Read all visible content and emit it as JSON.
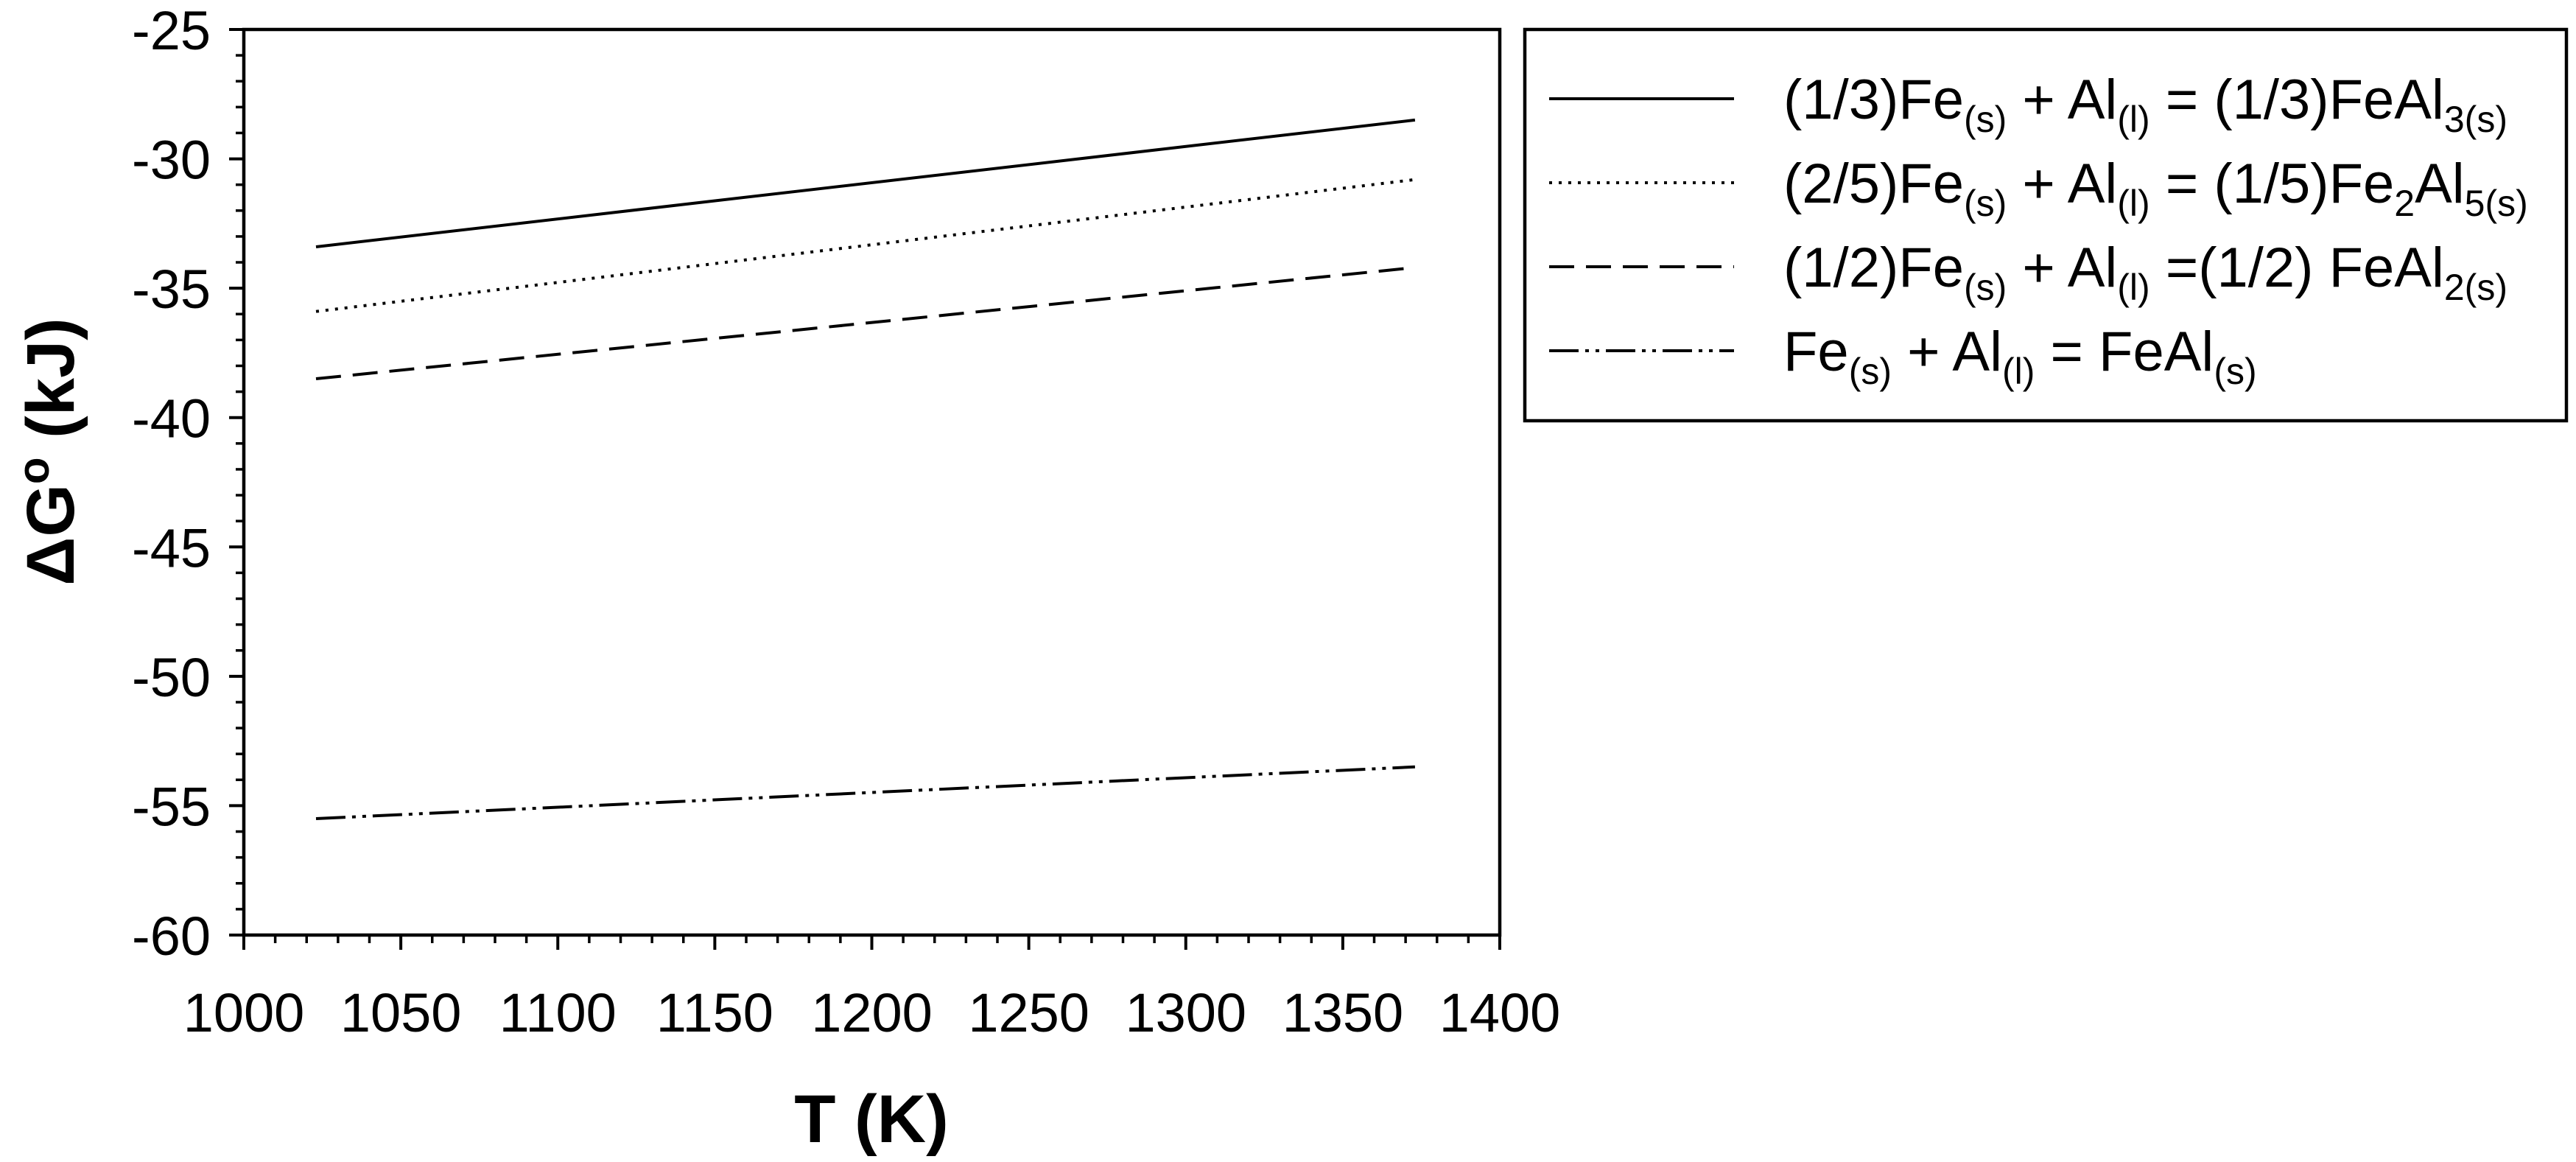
{
  "colors": {
    "background": "#ffffff",
    "line": "#000000"
  },
  "chart_data": {
    "type": "line",
    "xlabel": "T (K)",
    "ylabel_parts": [
      {
        "t": "ΔG"
      },
      {
        "sup": "o"
      },
      {
        "t": " (kJ)"
      }
    ],
    "xlim": [
      1000,
      1400
    ],
    "ylim": [
      -60,
      -25
    ],
    "xticks": [
      1000,
      1050,
      1100,
      1150,
      1200,
      1250,
      1300,
      1350,
      1400
    ],
    "yticks": [
      -60,
      -55,
      -50,
      -45,
      -40,
      -35,
      -30,
      -25
    ],
    "x_minor_step": 10,
    "y_minor_step": 1,
    "grid": false,
    "series": [
      {
        "label_parts": [
          {
            "t": "(1/3)Fe"
          },
          {
            "sub": "(s)"
          },
          {
            "t": " + Al"
          },
          {
            "sub": "(l)"
          },
          {
            "t": " = (1/3)FeAl"
          },
          {
            "sub": "3(s)"
          }
        ],
        "x": [
          1023,
          1373
        ],
        "y": [
          -33.4,
          -28.5
        ]
      },
      {
        "label_parts": [
          {
            "t": "(2/5)Fe"
          },
          {
            "sub": "(s)"
          },
          {
            "t": " + Al"
          },
          {
            "sub": "(l)"
          },
          {
            "t": " = (1/5)Fe"
          },
          {
            "sub": "2"
          },
          {
            "t": "Al"
          },
          {
            "sub": "5(s)"
          }
        ],
        "x": [
          1023,
          1373
        ],
        "y": [
          -35.9,
          -30.8
        ]
      },
      {
        "label_parts": [
          {
            "t": "(1/2)Fe"
          },
          {
            "sub": "(s)"
          },
          {
            "t": " + Al"
          },
          {
            "sub": "(l)"
          },
          {
            "t": " =(1/2) FeAl"
          },
          {
            "sub": "2(s)"
          }
        ],
        "x": [
          1023,
          1373
        ],
        "y": [
          -38.5,
          -34.2
        ]
      },
      {
        "label_parts": [
          {
            "t": "Fe"
          },
          {
            "sub": "(s)"
          },
          {
            "t": " + Al"
          },
          {
            "sub": "(l)"
          },
          {
            "t": " = FeAl"
          },
          {
            "sub": "(s)"
          }
        ],
        "x": [
          1023,
          1373
        ],
        "y": [
          -55.5,
          -53.5
        ]
      }
    ]
  }
}
